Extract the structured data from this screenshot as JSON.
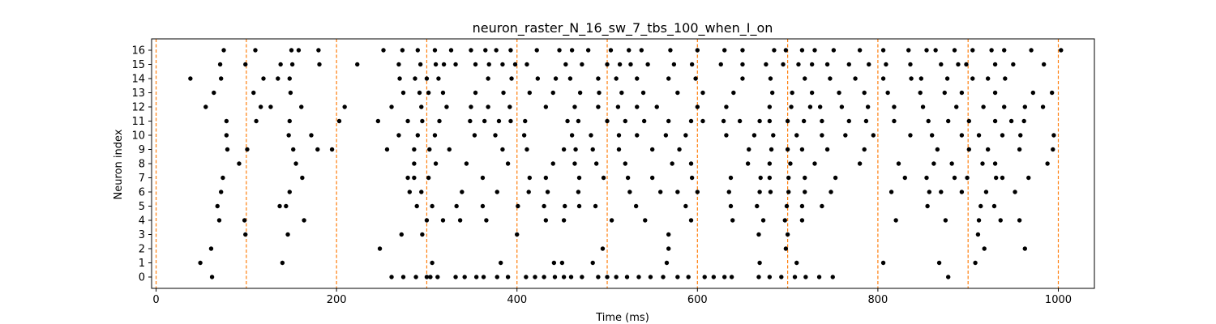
{
  "chart_data": {
    "type": "scatter",
    "title": "neuron_raster_N_16_sw_7_tbs_100_when_I_on",
    "xlabel": "Time (ms)",
    "ylabel": "Neuron index",
    "xlim": [
      -5,
      1040
    ],
    "ylim": [
      -0.8,
      16.8
    ],
    "x_ticks": [
      0,
      200,
      400,
      600,
      800,
      1000
    ],
    "y_ticks": [
      0,
      1,
      2,
      3,
      4,
      5,
      6,
      7,
      8,
      9,
      10,
      11,
      12,
      13,
      14,
      15,
      16
    ],
    "grid": false,
    "legend": "none",
    "vlines": [
      0,
      100,
      200,
      300,
      400,
      500,
      600,
      700,
      800,
      900,
      1000
    ],
    "colors": {
      "spike": "#000000",
      "vline": "#ff7f0e",
      "axes": "#000000"
    },
    "spikes": [
      {
        "neuron": 0,
        "times": [
          62,
          261,
          274,
          288,
          300,
          304,
          312,
          332,
          342,
          355,
          363,
          378,
          390,
          410,
          420,
          430,
          442,
          452,
          460,
          472,
          490,
          500,
          510,
          522,
          535,
          548,
          562,
          578,
          590,
          608,
          618,
          630,
          638,
          668,
          680,
          693,
          708,
          720,
          735,
          750,
          878
        ]
      },
      {
        "neuron": 1,
        "times": [
          49,
          140,
          306,
          382,
          441,
          450,
          484,
          566,
          669,
          710,
          806,
          868,
          908
        ]
      },
      {
        "neuron": 2,
        "times": [
          61,
          248,
          495,
          568,
          698,
          918,
          963
        ]
      },
      {
        "neuron": 3,
        "times": [
          99,
          146,
          272,
          295,
          400,
          568,
          668,
          700,
          911
        ]
      },
      {
        "neuron": 4,
        "times": [
          70,
          98,
          164,
          300,
          318,
          337,
          366,
          432,
          452,
          505,
          542,
          593,
          639,
          673,
          697,
          716,
          820,
          875,
          912,
          936,
          957
        ]
      },
      {
        "neuron": 5,
        "times": [
          68,
          137,
          144,
          289,
          306,
          333,
          362,
          401,
          430,
          453,
          469,
          487,
          532,
          587,
          637,
          666,
          699,
          716,
          738,
          855,
          914,
          929
        ]
      },
      {
        "neuron": 6,
        "times": [
          72,
          148,
          281,
          294,
          339,
          378,
          413,
          434,
          468,
          525,
          559,
          578,
          600,
          635,
          669,
          681,
          701,
          719,
          748,
          815,
          857,
          870,
          893,
          920,
          952
        ]
      },
      {
        "neuron": 7,
        "times": [
          74,
          162,
          279,
          286,
          302,
          362,
          414,
          432,
          469,
          496,
          523,
          550,
          594,
          637,
          670,
          680,
          701,
          719,
          753,
          830,
          854,
          885,
          899,
          931,
          938,
          967
        ]
      },
      {
        "neuron": 8,
        "times": [
          92,
          155,
          286,
          310,
          344,
          390,
          440,
          464,
          488,
          520,
          572,
          593,
          656,
          680,
          703,
          730,
          780,
          823,
          862,
          882,
          916,
          930,
          988
        ]
      },
      {
        "neuron": 9,
        "times": [
          79,
          101,
          152,
          179,
          195,
          256,
          286,
          303,
          325,
          384,
          411,
          452,
          465,
          484,
          513,
          550,
          580,
          657,
          682,
          700,
          716,
          744,
          785,
          866,
          901,
          922,
          957,
          994
        ]
      },
      {
        "neuron": 10,
        "times": [
          78,
          147,
          172,
          269,
          290,
          309,
          353,
          376,
          408,
          461,
          482,
          513,
          533,
          565,
          587,
          632,
          663,
          684,
          710,
          738,
          764,
          795,
          836,
          860,
          893,
          912,
          938,
          958,
          995
        ]
      },
      {
        "neuron": 11,
        "times": [
          78,
          111,
          148,
          203,
          246,
          279,
          295,
          314,
          348,
          364,
          380,
          393,
          409,
          456,
          468,
          500,
          520,
          541,
          568,
          593,
          606,
          629,
          647,
          669,
          680,
          700,
          718,
          738,
          768,
          787,
          818,
          856,
          878,
          901,
          930,
          948,
          962
        ]
      },
      {
        "neuron": 12,
        "times": [
          55,
          116,
          127,
          161,
          209,
          261,
          294,
          322,
          349,
          368,
          392,
          432,
          464,
          490,
          512,
          533,
          555,
          600,
          632,
          680,
          704,
          725,
          736,
          760,
          789,
          818,
          850,
          887,
          917,
          940,
          963,
          983
        ]
      },
      {
        "neuron": 13,
        "times": [
          64,
          108,
          149,
          274,
          292,
          302,
          318,
          354,
          385,
          414,
          440,
          470,
          491,
          516,
          540,
          578,
          606,
          640,
          683,
          705,
          727,
          757,
          785,
          811,
          847,
          874,
          893,
          930,
          972,
          993
        ]
      },
      {
        "neuron": 14,
        "times": [
          38,
          72,
          119,
          135,
          148,
          270,
          287,
          300,
          313,
          368,
          394,
          423,
          443,
          459,
          490,
          510,
          533,
          568,
          598,
          650,
          681,
          719,
          747,
          775,
          806,
          837,
          848,
          877,
          905,
          922,
          941
        ]
      },
      {
        "neuron": 15,
        "times": [
          71,
          99,
          138,
          151,
          181,
          223,
          269,
          293,
          310,
          319,
          332,
          354,
          369,
          384,
          398,
          411,
          454,
          472,
          500,
          514,
          526,
          545,
          574,
          594,
          626,
          650,
          676,
          695,
          712,
          727,
          744,
          768,
          790,
          809,
          836,
          870,
          889,
          898,
          930,
          950,
          984
        ]
      },
      {
        "neuron": 16,
        "times": [
          75,
          110,
          150,
          158,
          180,
          252,
          273,
          290,
          309,
          327,
          349,
          365,
          377,
          393,
          422,
          447,
          461,
          479,
          504,
          524,
          538,
          570,
          600,
          630,
          650,
          685,
          698,
          716,
          730,
          751,
          780,
          806,
          834,
          854,
          864,
          885,
          905,
          926,
          940,
          970,
          1003
        ]
      }
    ]
  }
}
